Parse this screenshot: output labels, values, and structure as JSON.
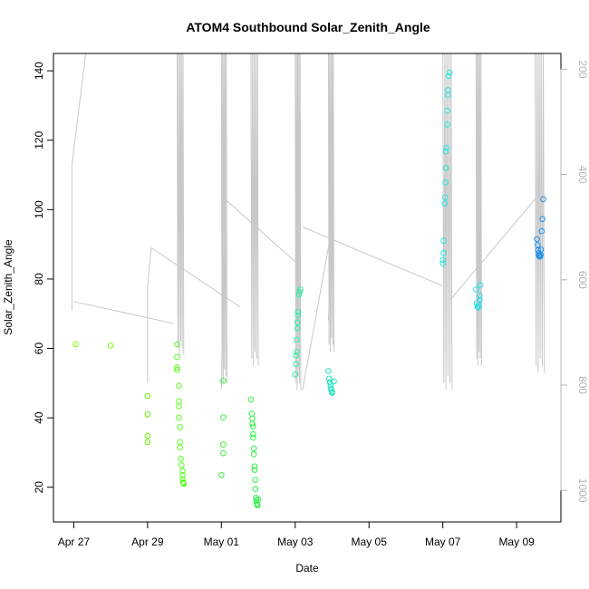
{
  "chart_data": {
    "type": "scatter",
    "title": "ATOM4 Southbound Solar_Zenith_Angle",
    "xlabel": "Date",
    "ylabel": "Solar_Zenith_Angle",
    "x_ticks": [
      "Apr 27",
      "Apr 29",
      "May 01",
      "May 03",
      "May 05",
      "May 07",
      "May 09"
    ],
    "x_tick_days": [
      0,
      2,
      4,
      6,
      8,
      10,
      12
    ],
    "xlim_days": [
      -0.55,
      13.2
    ],
    "ylim": [
      10,
      145
    ],
    "y_ticks": [
      20,
      40,
      60,
      80,
      100,
      120,
      140
    ],
    "right_axis": {
      "ticks": [
        200,
        400,
        600,
        800,
        1000
      ],
      "range": [
        1060,
        170
      ],
      "reversed": true,
      "color": "#b3b3b3"
    },
    "series": [
      {
        "marker": "circle",
        "points": [
          [
            0.05,
            61.2,
            "#7cfc00"
          ],
          [
            1.0,
            60.8,
            "#7cfc00"
          ],
          [
            2.0,
            46.3,
            "#66f000"
          ],
          [
            2.0,
            41.0,
            "#66f000"
          ],
          [
            2.0,
            34.8,
            "#66f000"
          ],
          [
            2.0,
            33.0,
            "#66f000"
          ],
          [
            2.8,
            61.2,
            "#55ff1c"
          ],
          [
            2.8,
            57.5,
            "#55ff1c"
          ],
          [
            2.8,
            54.5,
            "#55ff1c"
          ],
          [
            2.8,
            53.8,
            "#55ff1c"
          ],
          [
            2.85,
            49.2,
            "#55ff1c"
          ],
          [
            2.85,
            44.8,
            "#55ff1c"
          ],
          [
            2.85,
            43.3,
            "#55ff1c"
          ],
          [
            2.85,
            40.0,
            "#55ff1c"
          ],
          [
            2.88,
            37.3,
            "#55ff1c"
          ],
          [
            2.88,
            33.0,
            "#55ff1c"
          ],
          [
            2.88,
            31.5,
            "#55ff1c"
          ],
          [
            2.9,
            28.2,
            "#55ff1c"
          ],
          [
            2.92,
            26.3,
            "#55ff1c"
          ],
          [
            2.95,
            24.7,
            "#55ff1c"
          ],
          [
            2.95,
            23.5,
            "#55ff1c"
          ],
          [
            2.95,
            22.3,
            "#55ff1c"
          ],
          [
            2.96,
            21.4,
            "#55ff1c"
          ],
          [
            2.97,
            21.2,
            "#55ff1c"
          ],
          [
            2.98,
            21.0,
            "#55ff1c"
          ],
          [
            4.05,
            50.7,
            "#3cf03c"
          ],
          [
            4.05,
            40.1,
            "#3cf03c"
          ],
          [
            4.05,
            32.3,
            "#3cf03c"
          ],
          [
            4.05,
            29.8,
            "#3cf03c"
          ],
          [
            4.0,
            23.5,
            "#3cf03c"
          ],
          [
            4.8,
            45.3,
            "#2ef048"
          ],
          [
            4.82,
            41.2,
            "#2ef048"
          ],
          [
            4.84,
            39.8,
            "#2ef048"
          ],
          [
            4.84,
            38.4,
            "#2ef048"
          ],
          [
            4.86,
            37.5,
            "#2ef048"
          ],
          [
            4.86,
            35.3,
            "#2ef048"
          ],
          [
            4.86,
            34.3,
            "#2ef048"
          ],
          [
            4.88,
            31.2,
            "#2ef048"
          ],
          [
            4.88,
            29.5,
            "#2ef048"
          ],
          [
            4.9,
            26.0,
            "#2ef048"
          ],
          [
            4.9,
            25.0,
            "#2ef048"
          ],
          [
            4.92,
            22.1,
            "#2ef048"
          ],
          [
            4.92,
            19.5,
            "#2ef048"
          ],
          [
            4.94,
            17.0,
            "#2ef048"
          ],
          [
            4.95,
            16.2,
            "#2ef048"
          ],
          [
            4.96,
            15.4,
            "#2ef048"
          ],
          [
            4.97,
            15.0,
            "#2ef048"
          ],
          [
            4.98,
            14.8,
            "#2ef048"
          ],
          [
            5.0,
            16.5,
            "#2ef048"
          ],
          [
            6.0,
            52.5,
            "#2af0a0"
          ],
          [
            6.02,
            55.5,
            "#2af0a0"
          ],
          [
            6.02,
            58.0,
            "#2af0a0"
          ],
          [
            6.04,
            59.0,
            "#2af0a0"
          ],
          [
            6.04,
            62.5,
            "#2af0a0"
          ],
          [
            6.06,
            65.8,
            "#2af0a0"
          ],
          [
            6.06,
            67.5,
            "#2af0a0"
          ],
          [
            6.08,
            69.5,
            "#2af0a0"
          ],
          [
            6.08,
            70.5,
            "#2af0a0"
          ],
          [
            6.1,
            75.5,
            "#2af0a0"
          ],
          [
            6.12,
            76.3,
            "#2af0a0"
          ],
          [
            6.14,
            77.0,
            "#2af0a0"
          ],
          [
            6.9,
            53.5,
            "#20e0c0"
          ],
          [
            6.92,
            51.3,
            "#20e0c0"
          ],
          [
            6.94,
            50.3,
            "#20e0c0"
          ],
          [
            6.96,
            49.5,
            "#20e0c0"
          ],
          [
            6.96,
            48.5,
            "#20e0c0"
          ],
          [
            6.98,
            48.0,
            "#20e0c0"
          ],
          [
            7.0,
            47.5,
            "#20e0c0"
          ],
          [
            7.0,
            47.2,
            "#20e0c0"
          ],
          [
            7.05,
            50.5,
            "#20e0c0"
          ],
          [
            10.0,
            85.5,
            "#20e8e0"
          ],
          [
            10.0,
            84.5,
            "#20e8e0"
          ],
          [
            10.02,
            87.5,
            "#20e8e0"
          ],
          [
            10.02,
            91.0,
            "#20e8e0"
          ],
          [
            10.05,
            101.8,
            "#20e8e0"
          ],
          [
            10.06,
            103.5,
            "#20e8e0"
          ],
          [
            10.07,
            107.8,
            "#20e8e0"
          ],
          [
            10.08,
            112.0,
            "#20e8e0"
          ],
          [
            10.08,
            116.8,
            "#20e8e0"
          ],
          [
            10.1,
            117.8,
            "#20e8e0"
          ],
          [
            10.12,
            124.5,
            "#20e8e0"
          ],
          [
            10.12,
            128.5,
            "#20e8e0"
          ],
          [
            10.14,
            133.0,
            "#20e8e0"
          ],
          [
            10.14,
            134.5,
            "#20e8e0"
          ],
          [
            10.16,
            138.5,
            "#20e8e0"
          ],
          [
            10.18,
            139.5,
            "#20e8e0"
          ],
          [
            10.9,
            77.0,
            "#20e0e8"
          ],
          [
            10.92,
            73.0,
            "#20e0e8"
          ],
          [
            10.94,
            72.0,
            "#20e0e8"
          ],
          [
            10.96,
            71.8,
            "#20e0e8"
          ],
          [
            10.98,
            72.5,
            "#20e0e8"
          ],
          [
            11.0,
            74.0,
            "#20e0e8"
          ],
          [
            11.0,
            75.2,
            "#20e0e8"
          ],
          [
            11.02,
            78.3,
            "#20e0e8"
          ],
          [
            12.55,
            91.5,
            "#1e90e8"
          ],
          [
            12.57,
            89.8,
            "#1e90e8"
          ],
          [
            12.58,
            88.3,
            "#1e90e8"
          ],
          [
            12.6,
            87.5,
            "#1e90e8"
          ],
          [
            12.6,
            86.8,
            "#1e90e8"
          ],
          [
            12.62,
            86.5,
            "#1e90e8"
          ],
          [
            12.64,
            86.5,
            "#1e90e8"
          ],
          [
            12.65,
            87.0,
            "#1e90e8"
          ],
          [
            12.66,
            88.5,
            "#1e90e8"
          ],
          [
            12.68,
            93.8,
            "#1e90e8"
          ],
          [
            12.7,
            97.3,
            "#1e90e8"
          ],
          [
            12.72,
            103.0,
            "#1e90e8"
          ]
        ]
      }
    ],
    "track_color": "#c8c8c8",
    "grid": false,
    "legend": "none"
  }
}
